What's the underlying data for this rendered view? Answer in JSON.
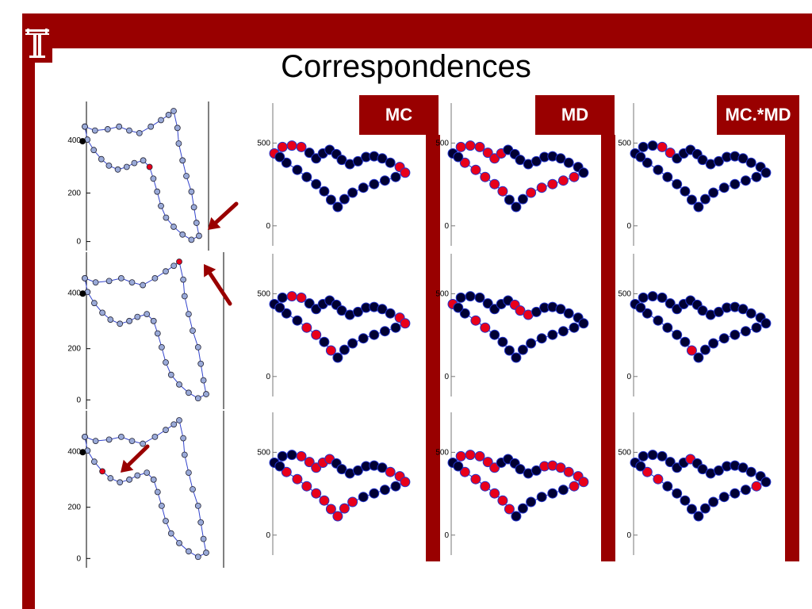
{
  "slide": {
    "title": "Correspondences",
    "logo_letter": "T",
    "columns": [
      {
        "label": "MC"
      },
      {
        "label": "MD"
      },
      {
        "label": "MC.*MD"
      }
    ]
  },
  "colors": {
    "brand": "#990000",
    "point_dark": "#000033",
    "point_red": "#e8001a",
    "contour": "#3344cc",
    "contour_fill": "#9aaad8"
  },
  "left_plots": {
    "ytick_labels": [
      "400",
      "200",
      "0"
    ]
  },
  "shape_plots": {
    "ytick_labels": [
      "500",
      "0"
    ]
  },
  "icons": [
    "arrow-icon"
  ]
}
